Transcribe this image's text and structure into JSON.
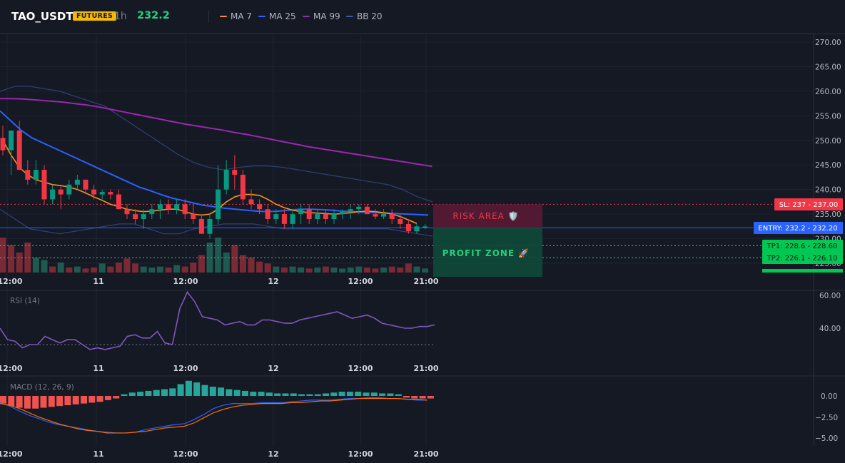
{
  "header": {
    "symbol": "TAO_USDT",
    "market_badge": "FUTURES",
    "timeframe": "1h",
    "last_price": "232.2",
    "legend": [
      {
        "label": "MA 7",
        "color": "#f7931a"
      },
      {
        "label": "MA 25",
        "color": "#2962ff"
      },
      {
        "label": "MA 99",
        "color": "#9c27b0"
      },
      {
        "label": "BB 20",
        "color": "#3d5a9e"
      }
    ]
  },
  "price_axis": {
    "ticks": [
      "270.00",
      "265.00",
      "260.00",
      "255.00",
      "250.00",
      "245.00",
      "240.00",
      "235.00",
      "230.00",
      "225.00"
    ]
  },
  "time_axis": {
    "ticks": [
      "12:00",
      "11",
      "12:00",
      "12",
      "12:00",
      "21:00"
    ]
  },
  "levels": {
    "sl": {
      "label": "SL: 237 - 237.00",
      "value": 237.0,
      "color": "#f23645"
    },
    "entry": {
      "label": "ENTRY: 232.2 - 232.20",
      "value": 232.2,
      "color": "#2962ff"
    },
    "tp1": {
      "label": "TP1: 228.6 - 228.60",
      "value": 228.6,
      "color": "#089981"
    },
    "tp2": {
      "label": "TP2: 226.1 - 226.10",
      "value": 226.1,
      "color": "#089981"
    }
  },
  "zones": {
    "risk_label": "RISK AREA 🛡️",
    "profit_label": "PROFIT ZONE 🚀"
  },
  "rsi": {
    "title": "RSI (14)",
    "ticks": [
      "60.00",
      "40.00"
    ],
    "values": [
      40,
      33,
      32,
      28,
      30,
      30,
      35,
      33,
      31,
      33,
      33,
      30,
      27,
      28,
      27,
      28,
      29,
      35,
      36,
      34,
      34,
      38,
      31,
      30,
      52,
      62,
      56,
      47,
      46,
      45,
      42,
      43,
      44,
      42,
      42,
      45,
      45,
      44,
      43,
      43,
      45,
      46,
      47,
      48,
      49,
      50,
      48,
      46,
      47,
      48,
      46,
      43,
      42,
      41,
      40,
      40,
      41,
      41,
      42
    ]
  },
  "macd": {
    "title": "MACD (12, 26, 9)",
    "ticks": [
      "0.00",
      "−2.50",
      "−5.00"
    ],
    "histogram": [
      -0.9,
      -1.2,
      -1.4,
      -1.5,
      -1.5,
      -1.4,
      -1.3,
      -1.2,
      -1.1,
      -1.0,
      -0.9,
      -0.8,
      -0.7,
      -0.5,
      -0.3,
      0.2,
      0.4,
      0.5,
      0.6,
      0.7,
      0.8,
      0.9,
      1.4,
      1.8,
      1.6,
      1.3,
      1.1,
      1.0,
      0.8,
      0.7,
      0.6,
      0.5,
      0.5,
      0.4,
      0.3,
      0.3,
      0.3,
      0.2,
      0.2,
      0.2,
      0.3,
      0.4,
      0.5,
      0.5,
      0.5,
      0.4,
      0.4,
      0.3,
      0.3,
      0.2,
      -0.2,
      -0.3,
      -0.3,
      -0.3
    ],
    "macd_line": [
      -0.8,
      -1.2,
      -1.8,
      -2.3,
      -2.7,
      -3.1,
      -3.4,
      -3.6,
      -3.8,
      -4.0,
      -4.2,
      -4.3,
      -4.4,
      -4.4,
      -4.3,
      -4.0,
      -3.8,
      -3.6,
      -3.4,
      -3.3,
      -2.8,
      -2.2,
      -1.5,
      -1.1,
      -0.9,
      -0.9,
      -0.9,
      -0.8,
      -0.8,
      -0.8,
      -0.7,
      -0.6,
      -0.5,
      -0.5,
      -0.5,
      -0.4,
      -0.3,
      -0.3,
      -0.2,
      -0.2,
      -0.3,
      -0.3,
      -0.4,
      -0.5,
      -0.5
    ],
    "signal_line": [
      -0.9,
      -1.1,
      -1.5,
      -2.0,
      -2.5,
      -2.9,
      -3.3,
      -3.6,
      -3.9,
      -4.1,
      -4.2,
      -4.4,
      -4.4,
      -4.4,
      -4.3,
      -4.2,
      -4.0,
      -3.8,
      -3.7,
      -3.6,
      -3.2,
      -2.6,
      -2.0,
      -1.6,
      -1.3,
      -1.1,
      -1.0,
      -0.9,
      -0.9,
      -0.9,
      -0.8,
      -0.8,
      -0.7,
      -0.6,
      -0.6,
      -0.5,
      -0.4,
      -0.3,
      -0.3,
      -0.3,
      -0.3,
      -0.3,
      -0.4,
      -0.4,
      -0.5
    ]
  },
  "candles": [
    [
      250.5,
      253,
      247,
      248,
      "#f23645"
    ],
    [
      248,
      252,
      243,
      252,
      "#089981"
    ],
    [
      252,
      254,
      244,
      244,
      "#f23645"
    ],
    [
      244,
      246,
      241,
      242,
      "#f23645"
    ],
    [
      242,
      246,
      241,
      244,
      "#089981"
    ],
    [
      244,
      245,
      237,
      238,
      "#f23645"
    ],
    [
      238,
      241,
      237,
      240,
      "#089981"
    ],
    [
      240,
      241,
      236,
      239,
      "#f23645"
    ],
    [
      239,
      242,
      238,
      241,
      "#089981"
    ],
    [
      241,
      243,
      240,
      242,
      "#089981"
    ],
    [
      242,
      242,
      239,
      240,
      "#f23645"
    ],
    [
      240,
      241,
      238,
      239,
      "#f23645"
    ],
    [
      239,
      240,
      238,
      239.5,
      "#089981"
    ],
    [
      239.5,
      240,
      238,
      239,
      "#f23645"
    ],
    [
      239,
      240,
      236,
      236,
      "#f23645"
    ],
    [
      236,
      237,
      234,
      235,
      "#f23645"
    ],
    [
      235,
      236,
      233,
      234,
      "#f23645"
    ],
    [
      234,
      236,
      232,
      235,
      "#089981"
    ],
    [
      235,
      237,
      234,
      236,
      "#089981"
    ],
    [
      236,
      238,
      234,
      237,
      "#089981"
    ],
    [
      237,
      238,
      235,
      236,
      "#f23645"
    ],
    [
      236,
      238,
      235,
      237,
      "#089981"
    ],
    [
      237,
      238,
      234,
      235,
      "#f23645"
    ],
    [
      235,
      237,
      233,
      234,
      "#f23645"
    ],
    [
      234,
      235,
      231,
      231,
      "#f23645"
    ],
    [
      231,
      235,
      230,
      234,
      "#089981"
    ],
    [
      234,
      245,
      233,
      240,
      "#089981"
    ],
    [
      240,
      246,
      239,
      244,
      "#089981"
    ],
    [
      244,
      247,
      240,
      243,
      "#f23645"
    ],
    [
      243,
      244,
      237,
      238,
      "#f23645"
    ],
    [
      238,
      240,
      236,
      237,
      "#f23645"
    ],
    [
      237,
      238,
      235,
      236,
      "#f23645"
    ],
    [
      236,
      237,
      233,
      234,
      "#f23645"
    ],
    [
      234,
      236,
      233,
      235,
      "#089981"
    ],
    [
      235,
      236,
      232,
      233,
      "#f23645"
    ],
    [
      233,
      236,
      232,
      235,
      "#089981"
    ],
    [
      235,
      237,
      233,
      236,
      "#089981"
    ],
    [
      236,
      237,
      233,
      234,
      "#f23645"
    ],
    [
      234,
      236,
      233,
      235,
      "#089981"
    ],
    [
      235,
      236,
      233,
      234,
      "#f23645"
    ],
    [
      234,
      236,
      233,
      235,
      "#089981"
    ],
    [
      235,
      236,
      234,
      235.5,
      "#089981"
    ],
    [
      235.5,
      237,
      234,
      236,
      "#089981"
    ],
    [
      236,
      237,
      235,
      236.5,
      "#089981"
    ],
    [
      236.5,
      237,
      235,
      235,
      "#f23645"
    ],
    [
      235,
      236,
      234,
      234.5,
      "#f23645"
    ],
    [
      234.5,
      236,
      234,
      235,
      "#089981"
    ],
    [
      235,
      236,
      233,
      234,
      "#f23645"
    ],
    [
      234,
      235,
      232,
      233,
      "#f23645"
    ],
    [
      233,
      234,
      231,
      231.5,
      "#f23645"
    ],
    [
      231.5,
      233,
      231,
      232.5,
      "#089981"
    ],
    [
      232.5,
      233,
      232,
      232.2,
      "#089981"
    ]
  ],
  "volume_bars": [
    [
      0.7,
      "#7a2a35"
    ],
    [
      0.55,
      "#7a2a35"
    ],
    [
      0.4,
      "#7a2a35"
    ],
    [
      0.6,
      "#7a2a35"
    ],
    [
      0.3,
      "#1e5a50"
    ],
    [
      0.25,
      "#1e5a50"
    ],
    [
      0.12,
      "#7a2a35"
    ],
    [
      0.2,
      "#1e5a50"
    ],
    [
      0.1,
      "#7a2a35"
    ],
    [
      0.12,
      "#1e5a50"
    ],
    [
      0.08,
      "#7a2a35"
    ],
    [
      0.1,
      "#7a2a35"
    ],
    [
      0.18,
      "#1e5a50"
    ],
    [
      0.12,
      "#7a2a35"
    ],
    [
      0.2,
      "#7a2a35"
    ],
    [
      0.28,
      "#7a2a35"
    ],
    [
      0.18,
      "#7a2a35"
    ],
    [
      0.12,
      "#1e5a50"
    ],
    [
      0.1,
      "#1e5a50"
    ],
    [
      0.12,
      "#1e5a50"
    ],
    [
      0.1,
      "#7a2a35"
    ],
    [
      0.15,
      "#1e5a50"
    ],
    [
      0.12,
      "#7a2a35"
    ],
    [
      0.2,
      "#7a2a35"
    ],
    [
      0.35,
      "#7a2a35"
    ],
    [
      0.6,
      "#1e5a50"
    ],
    [
      0.7,
      "#1e5a50"
    ],
    [
      0.4,
      "#1e5a50"
    ],
    [
      0.55,
      "#7a2a35"
    ],
    [
      0.35,
      "#7a2a35"
    ],
    [
      0.3,
      "#7a2a35"
    ],
    [
      0.22,
      "#7a2a35"
    ],
    [
      0.18,
      "#7a2a35"
    ],
    [
      0.12,
      "#1e5a50"
    ],
    [
      0.1,
      "#7a2a35"
    ],
    [
      0.12,
      "#1e5a50"
    ],
    [
      0.1,
      "#1e5a50"
    ],
    [
      0.08,
      "#7a2a35"
    ],
    [
      0.1,
      "#1e5a50"
    ],
    [
      0.12,
      "#7a2a35"
    ],
    [
      0.1,
      "#1e5a50"
    ],
    [
      0.08,
      "#1e5a50"
    ],
    [
      0.1,
      "#1e5a50"
    ],
    [
      0.12,
      "#1e5a50"
    ],
    [
      0.1,
      "#7a2a35"
    ],
    [
      0.08,
      "#7a2a35"
    ],
    [
      0.1,
      "#1e5a50"
    ],
    [
      0.12,
      "#7a2a35"
    ],
    [
      0.1,
      "#7a2a35"
    ],
    [
      0.18,
      "#7a2a35"
    ],
    [
      0.12,
      "#1e5a50"
    ],
    [
      0.08,
      "#1e5a50"
    ]
  ],
  "ma7": [
    250,
    247,
    244.5,
    243,
    242,
    241.5,
    241,
    240.8,
    240.5,
    240,
    239.3,
    238.5,
    237.8,
    237,
    236.5,
    236,
    235.7,
    235.5,
    235.6,
    235.8,
    236,
    236,
    235.5,
    235,
    234.8,
    235,
    236,
    237.5,
    238.5,
    239,
    239,
    238.8,
    238,
    237,
    236.3,
    235.8,
    235.5,
    235.3,
    235.2,
    235.1,
    235,
    235.1,
    235.3,
    235.5,
    235.6,
    235.5,
    235.3,
    235,
    234.5,
    233.8,
    233.1
  ],
  "ma25": [
    256,
    254,
    252,
    250.5,
    249.5,
    248.5,
    247.5,
    246.5,
    245.5,
    244.5,
    243.5,
    242.5,
    241.5,
    240.5,
    239.8,
    239,
    238.3,
    237.8,
    237.3,
    236.8,
    236.5,
    236.2,
    236,
    235.8,
    235.6,
    235.5,
    235.6,
    235.8,
    236,
    236,
    235.9,
    235.8,
    235.6,
    235.5,
    235.4,
    235.3,
    235.2,
    235.1,
    235,
    234.9,
    234.8
  ],
  "ma99": [
    258.5,
    258.5,
    258.4,
    258.2,
    258,
    257.8,
    257.5,
    257.2,
    256.8,
    256.3,
    255.8,
    255.3,
    254.8,
    254.3,
    253.8,
    253.3,
    252.9,
    252.5,
    252.1,
    251.6,
    251.2,
    250.7,
    250.2,
    249.7,
    249.2,
    248.7,
    248.3,
    247.9,
    247.5,
    247.1,
    246.7,
    246.3,
    245.9,
    245.5,
    245.1,
    244.7
  ],
  "bb_upper": [
    260,
    261,
    261,
    260.5,
    260,
    259,
    258,
    257,
    255,
    253,
    251,
    249,
    247,
    245.5,
    244.5,
    244,
    244.5,
    244.8,
    244.8,
    244.5,
    244,
    243.5,
    243,
    242.5,
    242,
    241.5,
    241,
    240,
    238.5,
    237.5
  ],
  "bb_lower": [
    236,
    234,
    232,
    231.5,
    231,
    231.5,
    232,
    232.5,
    233,
    233,
    232,
    231,
    231,
    232,
    232.5,
    233,
    233,
    233,
    232.5,
    232,
    232,
    232,
    232,
    232,
    232,
    232,
    232,
    231.5,
    231,
    230.5
  ]
}
